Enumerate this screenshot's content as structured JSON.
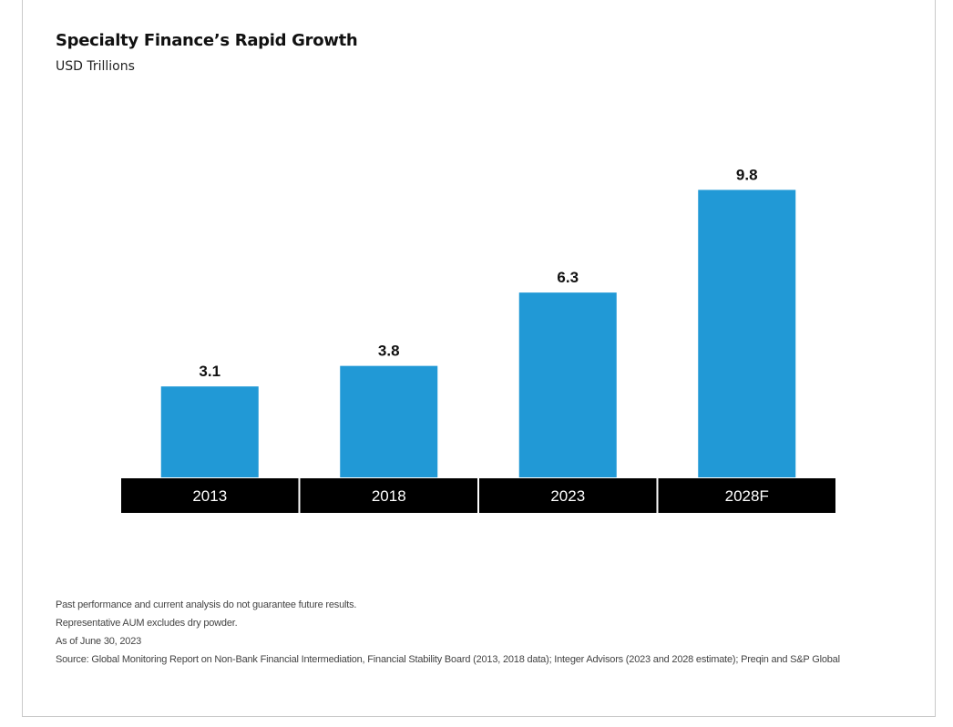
{
  "header": {
    "title": "Specialty Finance’s Rapid Growth",
    "subtitle": "USD Trillions"
  },
  "chart_data": {
    "type": "bar",
    "title": "Specialty Finance’s Rapid Growth",
    "ylabel": "USD Trillions",
    "categories": [
      "2013",
      "2018",
      "2023",
      "2028F"
    ],
    "values": [
      3.1,
      3.8,
      6.3,
      9.8
    ],
    "value_labels": [
      "3.1",
      "3.8",
      "6.3",
      "9.8"
    ],
    "bar_color": "#2199d6",
    "category_band_color": "#000000",
    "grid": false,
    "legend": "none"
  },
  "footnotes": [
    "Past performance and current analysis do not guarantee future results.",
    "Representative AUM excludes dry powder.",
    "As of June 30, 2023",
    "Source: Global Monitoring Report on Non-Bank Financial Intermediation, Financial Stability Board (2013, 2018 data); Integer Advisors (2023 and 2028 estimate); Preqin and S&P Global"
  ]
}
